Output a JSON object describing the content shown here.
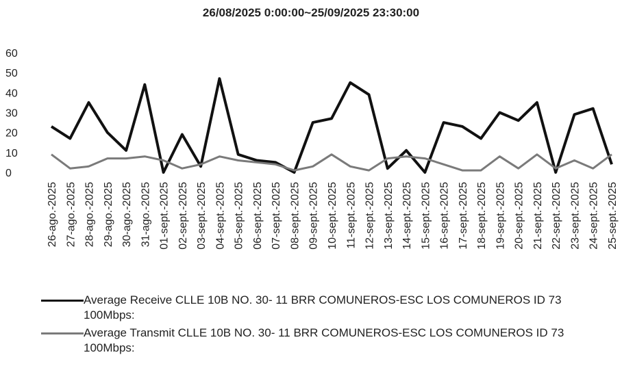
{
  "chart_data": {
    "type": "line",
    "title": "26/08/2025 0:00:00~25/09/2025 23:30:00",
    "categories": [
      "26-ago.-2025",
      "27-ago.-2025",
      "28-ago.-2025",
      "29-ago.-2025",
      "30-ago.-2025",
      "31-ago.-2025",
      "01-sept.-2025",
      "02-sept.-2025",
      "03-sept.-2025",
      "04-sept.-2025",
      "05-sept.-2025",
      "06-sept.-2025",
      "07-sept.-2025",
      "08-sept.-2025",
      "09-sept.-2025",
      "10-sept.-2025",
      "11-sept.-2025",
      "12-sept.-2025",
      "13-sept.-2025",
      "14-sept.-2025",
      "15-sept.-2025",
      "16-sept.-2025",
      "17-sept.-2025",
      "18-sept.-2025",
      "19-sept.-2025",
      "20-sept.-2025",
      "21-sept.-2025",
      "22-sept.-2025",
      "23-sept.-2025",
      "24-sept.-2025",
      "25-sept.-2025"
    ],
    "series": [
      {
        "name": "Average Receive CLLE 10B  NO. 30- 11 BRR COMUNEROS-ESC LOS COMUNEROS ID 73 100Mbps:",
        "color": "#111111",
        "values": [
          23,
          17,
          35,
          20,
          11,
          44,
          0,
          19,
          3,
          47,
          9,
          6,
          5,
          0,
          25,
          27,
          45,
          39,
          2,
          11,
          0,
          25,
          23,
          17,
          30,
          26,
          35,
          0,
          29,
          32,
          4
        ]
      },
      {
        "name": "Average Transmit CLLE 10B  NO. 30- 11 BRR COMUNEROS-ESC LOS COMUNEROS ID 73 100Mbps:",
        "color": "#7a7a7a",
        "values": [
          9,
          2,
          3,
          7,
          7,
          8,
          6,
          2,
          4,
          8,
          6,
          5,
          4,
          1,
          3,
          9,
          3,
          1,
          7,
          8,
          7,
          4,
          1,
          1,
          8,
          2,
          9,
          2,
          6,
          2,
          9
        ]
      }
    ],
    "ylim": [
      0,
      60
    ],
    "yticks": [
      0,
      10,
      20,
      30,
      40,
      50,
      60
    ],
    "grid": false
  }
}
